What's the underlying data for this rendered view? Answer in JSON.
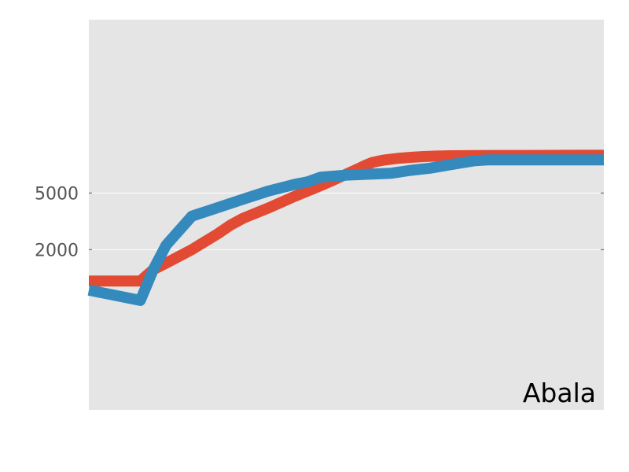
{
  "chart_data": {
    "type": "line",
    "title": "",
    "xlabel": "",
    "ylabel": "",
    "y_scale": "reciprocal",
    "yticks": [
      2000,
      5000
    ],
    "ytick_labels": [
      "2000",
      "5000"
    ],
    "x_ticks_shown": false,
    "grid": true,
    "legend": "none",
    "annotation": "Abala",
    "colors": {
      "plot_bg": "#e5e5e5",
      "grid": "#ffffff",
      "tick_text": "#555555"
    },
    "series": [
      {
        "color": "#e24a33",
        "x": [
          0,
          4,
          5,
          6,
          8,
          10,
          11,
          12,
          14,
          16,
          18,
          19,
          20,
          21,
          21.5,
          22,
          22.5,
          23,
          24,
          25,
          26,
          27,
          27.5,
          28,
          29,
          30,
          32,
          34,
          36,
          38,
          40
        ],
        "y": [
          1500,
          1500,
          1650,
          1750,
          2000,
          2400,
          2700,
          3000,
          3600,
          4600,
          6200,
          7600,
          10000,
          14500,
          19000,
          26000,
          32000,
          40000,
          60000,
          90000,
          140000,
          220000,
          280000,
          340000,
          450000,
          560000,
          800000,
          1100000,
          1550000,
          2100000,
          2700000
        ]
      },
      {
        "color": "#348abd",
        "x": [
          0,
          4,
          5,
          6,
          8,
          10,
          12,
          14,
          16,
          17,
          18,
          20,
          23.5,
          25,
          26.5,
          28,
          29,
          30,
          31,
          33.5,
          36,
          38,
          40
        ],
        "y": [
          1400,
          1300,
          1650,
          2100,
          3100,
          3600,
          4300,
          5300,
          6500,
          7100,
          8600,
          9500,
          10500,
          12500,
          14600,
          19500,
          25000,
          35000,
          40000,
          40000,
          40000,
          40000,
          40000
        ]
      }
    ]
  }
}
